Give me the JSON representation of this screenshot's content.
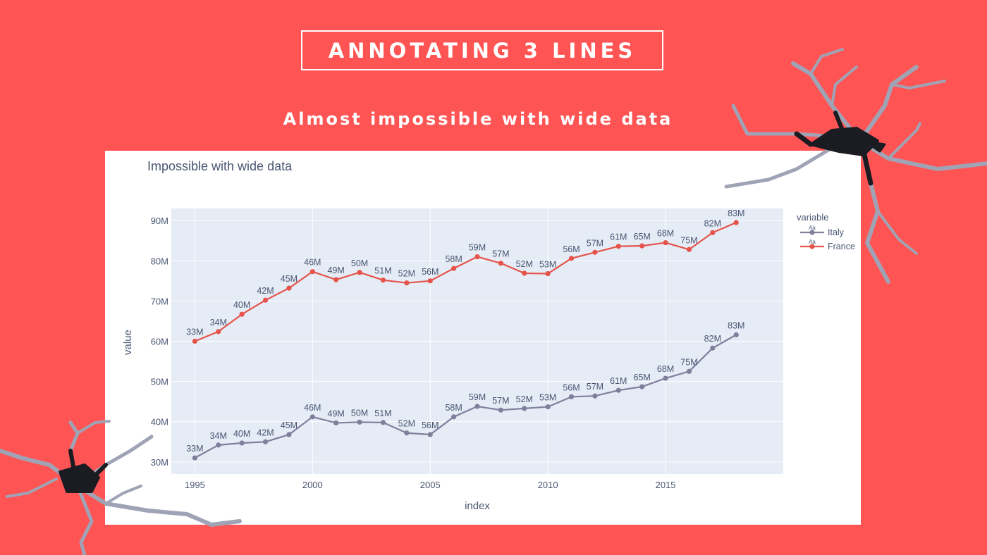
{
  "header": {
    "title": "ANNOTATING 3 LINES",
    "subtitle": "Almost impossible with wide data"
  },
  "colors": {
    "background": "#ff5454",
    "italy": "#7f7f9c",
    "france": "#e5534b",
    "plot_bg": "#e5ecf6"
  },
  "chart_data": {
    "type": "line",
    "title": "Impossible with wide data",
    "xlabel": "index",
    "ylabel": "value",
    "xlim": [
      1994,
      2020
    ],
    "ylim": [
      27000000,
      93000000
    ],
    "x_ticks": [
      1995,
      2000,
      2005,
      2010,
      2015
    ],
    "x_tick_labels": [
      "1995",
      "2000",
      "2005",
      "2010",
      "2015"
    ],
    "y_ticks": [
      30000000,
      40000000,
      50000000,
      60000000,
      70000000,
      80000000,
      90000000
    ],
    "y_tick_labels": [
      "30M",
      "40M",
      "50M",
      "60M",
      "70M",
      "80M",
      "90M"
    ],
    "x": [
      1995,
      1996,
      1997,
      1998,
      1999,
      2000,
      2001,
      2002,
      2003,
      2004,
      2005,
      2006,
      2007,
      2008,
      2009,
      2010,
      2011,
      2012,
      2013,
      2014,
      2015,
      2016,
      2017,
      2018
    ],
    "point_labels": [
      "33M",
      "34M",
      "40M",
      "42M",
      "45M",
      "46M",
      "49M",
      "50M",
      "51M",
      "52M",
      "56M",
      "58M",
      "59M",
      "57M",
      "52M",
      "53M",
      "56M",
      "57M",
      "61M",
      "65M",
      "68M",
      "75M",
      "82M",
      "83M"
    ],
    "legend": {
      "title": "variable",
      "placement": "top-right",
      "marker_text": "Aa"
    },
    "series": [
      {
        "name": "Italy",
        "color": "#7f7f9c",
        "values": [
          31000000,
          34200000,
          34700000,
          35000000,
          36800000,
          41200000,
          39700000,
          39900000,
          39800000,
          37200000,
          36800000,
          41200000,
          43800000,
          42900000,
          43300000,
          43700000,
          46200000,
          46400000,
          47800000,
          48700000,
          50800000,
          52500000,
          58300000,
          61600000
        ]
      },
      {
        "name": "France",
        "color": "#e5534b",
        "values": [
          60000000,
          62400000,
          66700000,
          70200000,
          73200000,
          77300000,
          75300000,
          77100000,
          75200000,
          74500000,
          75000000,
          78100000,
          81000000,
          79400000,
          76900000,
          76800000,
          80600000,
          82100000,
          83600000,
          83700000,
          84500000,
          82800000,
          87000000,
          89500000
        ]
      }
    ]
  }
}
